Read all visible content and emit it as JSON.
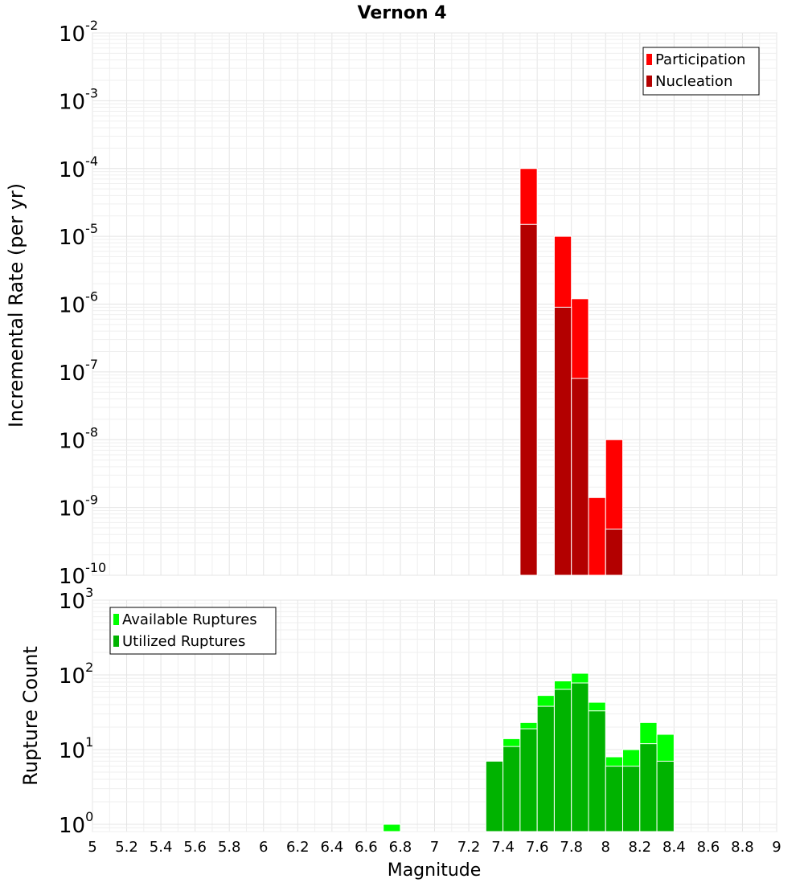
{
  "chart_data": [
    {
      "type": "bar",
      "title": "Vernon 4",
      "xlabel": "Magnitude",
      "ylabel": "Incremental Rate (per yr)",
      "yscale": "log",
      "xlim": [
        5,
        9
      ],
      "ylim": [
        1e-10,
        0.01
      ],
      "grid": true,
      "legend_position": "top-right",
      "bin_width": 0.1,
      "x_ticks": [
        "5",
        "5.2",
        "5.4",
        "5.6",
        "5.8",
        "6",
        "6.2",
        "6.4",
        "6.6",
        "6.8",
        "7",
        "7.2",
        "7.4",
        "7.6",
        "7.8",
        "8",
        "8.2",
        "8.4",
        "8.6",
        "8.8",
        "9"
      ],
      "y_ticks": [
        {
          "base": "10",
          "exp": "-2",
          "value": 0.01
        },
        {
          "base": "10",
          "exp": "-3",
          "value": 0.001
        },
        {
          "base": "10",
          "exp": "-4",
          "value": 0.0001
        },
        {
          "base": "10",
          "exp": "-5",
          "value": 1e-05
        },
        {
          "base": "10",
          "exp": "-6",
          "value": 1e-06
        },
        {
          "base": "10",
          "exp": "-7",
          "value": 1e-07
        },
        {
          "base": "10",
          "exp": "-8",
          "value": 1e-08
        },
        {
          "base": "10",
          "exp": "-9",
          "value": 1e-09
        },
        {
          "base": "10",
          "exp": "-10",
          "value": 1e-10
        }
      ],
      "series": [
        {
          "name": "Participation",
          "color": "#ff0000",
          "x": [
            7.55,
            7.75,
            7.85,
            7.95,
            8.05
          ],
          "values": [
            0.0001,
            1e-05,
            1.2e-06,
            1.4e-09,
            1e-08
          ]
        },
        {
          "name": "Nucleation",
          "color": "#b30000",
          "x": [
            7.55,
            7.75,
            7.85,
            8.05
          ],
          "values": [
            1.5e-05,
            9e-07,
            8e-08,
            4.8e-10
          ]
        }
      ]
    },
    {
      "type": "bar",
      "title": "",
      "xlabel": "Magnitude",
      "ylabel": "Rupture Count",
      "yscale": "log",
      "xlim": [
        5,
        9
      ],
      "ylim": [
        0.8,
        1000
      ],
      "grid": true,
      "legend_position": "top-left",
      "bin_width": 0.1,
      "y_ticks": [
        {
          "base": "10",
          "exp": "3",
          "value": 1000
        },
        {
          "base": "10",
          "exp": "2",
          "value": 100
        },
        {
          "base": "10",
          "exp": "1",
          "value": 10
        },
        {
          "base": "10",
          "exp": "0",
          "value": 1
        }
      ],
      "series": [
        {
          "name": "Available Ruptures",
          "color": "#00ff00",
          "x": [
            6.75,
            7.35,
            7.45,
            7.55,
            7.65,
            7.75,
            7.85,
            7.95,
            8.05,
            8.15,
            8.25,
            8.35
          ],
          "values": [
            1,
            7,
            14,
            23,
            53,
            83,
            105,
            43,
            8,
            10,
            23,
            16
          ]
        },
        {
          "name": "Utilized Ruptures",
          "color": "#00b300",
          "x": [
            7.35,
            7.45,
            7.55,
            7.65,
            7.75,
            7.85,
            7.95,
            8.05,
            8.15,
            8.25,
            8.35
          ],
          "values": [
            7,
            11,
            19,
            38,
            64,
            78,
            33,
            6,
            6,
            12,
            7
          ]
        }
      ]
    }
  ]
}
